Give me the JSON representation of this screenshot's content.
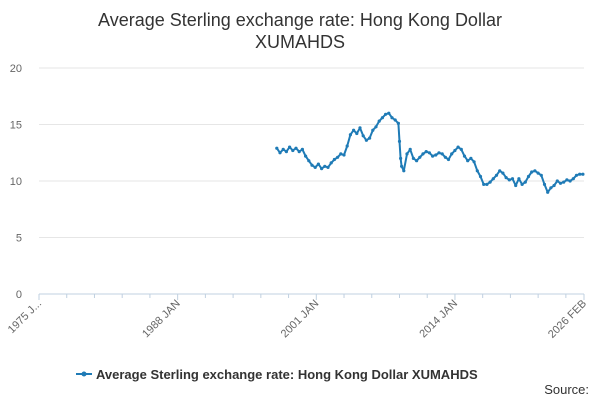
{
  "chart_data": {
    "type": "line",
    "title": "Average Sterling exchange rate: Hong Kong Dollar",
    "subtitle": "XUMAHDS",
    "xlabel": "",
    "ylabel": "",
    "xlim": [
      1975.0,
      2026.1
    ],
    "ylim": [
      0,
      20
    ],
    "y_ticks": [
      0,
      5,
      10,
      15,
      20
    ],
    "x_tick_labels": [
      {
        "label": "1975 J...",
        "x": 1975.0
      },
      {
        "label": "1988 JAN",
        "x": 1988.0
      },
      {
        "label": "2001 JAN",
        "x": 2001.0
      },
      {
        "label": "2014 JAN",
        "x": 2014.0
      },
      {
        "label": "2026 FEB",
        "x": 2026.1
      }
    ],
    "x_minor_ticks": [
      1977.6,
      1980.2,
      1982.8,
      1985.4,
      1990.6,
      1993.2,
      1995.8,
      1998.4,
      2003.6,
      2006.2,
      2008.8,
      2011.4,
      2016.6,
      2019.2,
      2021.8,
      2024.4
    ],
    "grid": true,
    "legend_position": "bottom",
    "series": [
      {
        "name": "Average Sterling exchange rate: Hong Kong Dollar XUMAHDS",
        "color": "#1f7bb6",
        "x": [
          1997.3,
          1997.6,
          1997.9,
          1998.2,
          1998.5,
          1998.8,
          1999.1,
          1999.4,
          1999.7,
          2000.0,
          2000.3,
          2000.6,
          2000.9,
          2001.2,
          2001.5,
          2001.8,
          2002.1,
          2002.4,
          2002.7,
          2003.0,
          2003.3,
          2003.6,
          2003.9,
          2004.2,
          2004.5,
          2004.8,
          2005.1,
          2005.4,
          2005.7,
          2006.0,
          2006.3,
          2006.6,
          2006.9,
          2007.2,
          2007.5,
          2007.8,
          2008.1,
          2008.4,
          2008.7,
          2008.8,
          2008.9,
          2009.0,
          2009.2,
          2009.5,
          2009.8,
          2010.1,
          2010.4,
          2010.7,
          2011.0,
          2011.3,
          2011.6,
          2011.9,
          2012.2,
          2012.5,
          2012.8,
          2013.1,
          2013.4,
          2013.7,
          2014.0,
          2014.3,
          2014.6,
          2014.9,
          2015.2,
          2015.5,
          2015.8,
          2016.1,
          2016.4,
          2016.7,
          2017.0,
          2017.3,
          2017.6,
          2017.9,
          2018.2,
          2018.5,
          2018.8,
          2019.1,
          2019.4,
          2019.7,
          2020.0,
          2020.3,
          2020.6,
          2020.9,
          2021.2,
          2021.5,
          2021.8,
          2022.1,
          2022.4,
          2022.7,
          2023.0,
          2023.3,
          2023.6,
          2023.9,
          2024.2,
          2024.5,
          2024.8,
          2025.1,
          2025.4,
          2025.7,
          2026.0
        ],
        "values": [
          12.9,
          12.5,
          12.8,
          12.6,
          13.0,
          12.7,
          12.9,
          12.6,
          12.8,
          12.2,
          11.8,
          11.4,
          11.2,
          11.5,
          11.1,
          11.3,
          11.2,
          11.6,
          11.9,
          12.1,
          12.4,
          12.3,
          13.1,
          14.1,
          14.5,
          14.2,
          14.7,
          14.0,
          13.6,
          13.8,
          14.5,
          14.8,
          15.3,
          15.6,
          15.9,
          16.0,
          15.6,
          15.4,
          15.1,
          13.5,
          12.0,
          11.3,
          10.9,
          12.4,
          12.8,
          12.0,
          11.8,
          12.1,
          12.4,
          12.6,
          12.5,
          12.2,
          12.3,
          12.5,
          12.4,
          12.1,
          11.9,
          12.4,
          12.7,
          13.0,
          12.8,
          12.2,
          11.8,
          12.0,
          11.7,
          10.9,
          10.4,
          9.7,
          9.7,
          9.9,
          10.2,
          10.5,
          10.9,
          10.7,
          10.3,
          10.1,
          10.2,
          9.6,
          10.2,
          9.7,
          9.9,
          10.4,
          10.8,
          10.9,
          10.7,
          10.5,
          9.7,
          9.0,
          9.4,
          9.6,
          10.0,
          9.8,
          9.9,
          10.1,
          10.0,
          10.2,
          10.5,
          10.6,
          10.6
        ]
      }
    ]
  },
  "footer": {
    "source_label": "Source:"
  }
}
